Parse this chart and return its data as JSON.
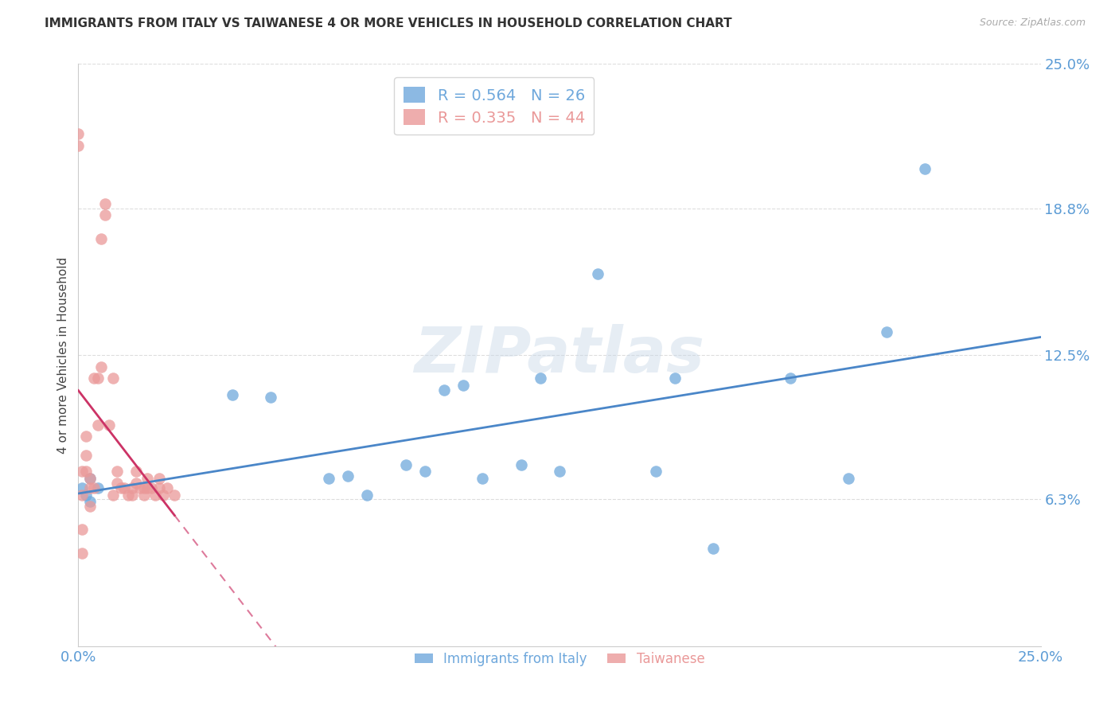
{
  "title": "IMMIGRANTS FROM ITALY VS TAIWANESE 4 OR MORE VEHICLES IN HOUSEHOLD CORRELATION CHART",
  "source": "Source: ZipAtlas.com",
  "ylabel": "4 or more Vehicles in Household",
  "xlim": [
    0.0,
    0.25
  ],
  "ylim": [
    0.0,
    0.25
  ],
  "xtick_positions": [
    0.0,
    0.25
  ],
  "xtick_labels": [
    "0.0%",
    "25.0%"
  ],
  "ytick_values_right": [
    0.25,
    0.188,
    0.125,
    0.063
  ],
  "ytick_labels_right": [
    "25.0%",
    "18.8%",
    "12.5%",
    "6.3%"
  ],
  "grid_color": "#dddddd",
  "background_color": "#ffffff",
  "legend_labels": [
    "Immigrants from Italy",
    "Taiwanese"
  ],
  "blue_color": "#6fa8dc",
  "pink_color": "#ea9999",
  "blue_line_color": "#4a86c8",
  "pink_line_color": "#cc3366",
  "blue_R": 0.564,
  "blue_N": 26,
  "pink_R": 0.335,
  "pink_N": 44,
  "blue_points_x": [
    0.001,
    0.002,
    0.003,
    0.003,
    0.005,
    0.04,
    0.05,
    0.065,
    0.07,
    0.075,
    0.085,
    0.09,
    0.095,
    0.1,
    0.105,
    0.115,
    0.12,
    0.125,
    0.135,
    0.15,
    0.155,
    0.165,
    0.185,
    0.2,
    0.21,
    0.22
  ],
  "blue_points_y": [
    0.068,
    0.065,
    0.072,
    0.062,
    0.068,
    0.108,
    0.107,
    0.072,
    0.073,
    0.065,
    0.078,
    0.075,
    0.11,
    0.112,
    0.072,
    0.078,
    0.115,
    0.075,
    0.16,
    0.075,
    0.115,
    0.042,
    0.115,
    0.072,
    0.135,
    0.205
  ],
  "pink_points_x": [
    0.0,
    0.0,
    0.001,
    0.001,
    0.001,
    0.001,
    0.002,
    0.002,
    0.002,
    0.003,
    0.003,
    0.003,
    0.004,
    0.004,
    0.005,
    0.005,
    0.006,
    0.006,
    0.007,
    0.007,
    0.008,
    0.009,
    0.009,
    0.01,
    0.01,
    0.011,
    0.012,
    0.013,
    0.014,
    0.014,
    0.015,
    0.015,
    0.016,
    0.017,
    0.017,
    0.018,
    0.018,
    0.019,
    0.02,
    0.021,
    0.021,
    0.022,
    0.023,
    0.025
  ],
  "pink_points_y": [
    0.22,
    0.215,
    0.04,
    0.05,
    0.065,
    0.075,
    0.075,
    0.082,
    0.09,
    0.06,
    0.068,
    0.072,
    0.068,
    0.115,
    0.095,
    0.115,
    0.12,
    0.175,
    0.185,
    0.19,
    0.095,
    0.115,
    0.065,
    0.07,
    0.075,
    0.068,
    0.068,
    0.065,
    0.065,
    0.068,
    0.07,
    0.075,
    0.068,
    0.065,
    0.068,
    0.068,
    0.072,
    0.068,
    0.065,
    0.068,
    0.072,
    0.065,
    0.068,
    0.065
  ],
  "watermark": "ZIPatlas"
}
